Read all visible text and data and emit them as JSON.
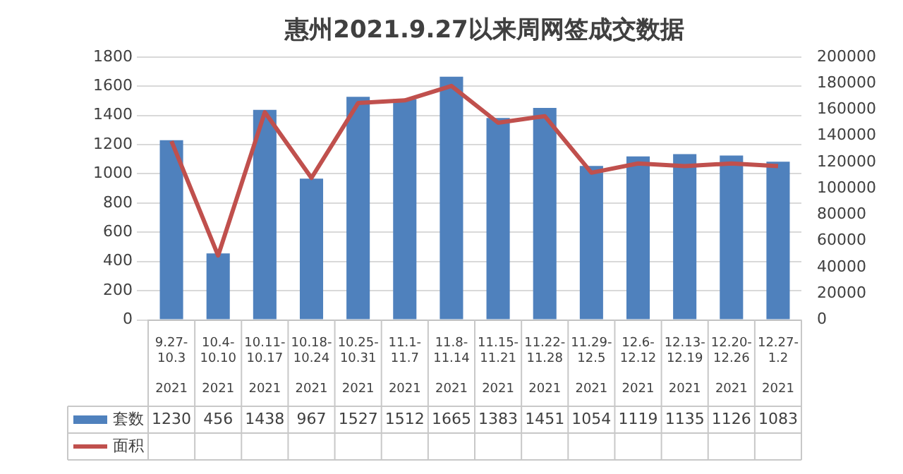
{
  "chart_data": {
    "type": "bar",
    "title": "惠州2021.9.27以来周网签成交数据",
    "categories": [
      "9.27-10.3 2021",
      "10.4-10.10 2021",
      "10.11-10.17 2021",
      "10.18-10.24 2021",
      "10.25-10.31 2021",
      "11.1-11.7 2021",
      "11.8-11.14 2021",
      "11.15-11.21 2021",
      "11.22-11.28 2021",
      "11.29-12.5 2021",
      "12.6-12.12 2021",
      "12.13-12.19 2021",
      "12.20-12.26 2021",
      "12.27-1.2 2021"
    ],
    "series": [
      {
        "name": "套数",
        "color": "#4f81bd",
        "values": [
          1230,
          456,
          1438,
          967,
          1527,
          1512,
          1665,
          1383,
          1451,
          1054,
          1119,
          1135,
          1126,
          1083
        ],
        "value_labels": [
          "1230",
          "456",
          "1438",
          "967",
          "1527",
          "1512",
          "1665",
          "1383",
          "1451",
          "1054",
          "1119",
          "1135",
          "1126",
          "1083"
        ]
      },
      {
        "name": "面积",
        "type": "line",
        "axis": "y2",
        "color": "#c0504d",
        "values": [
          136000,
          49000,
          158000,
          108000,
          165000,
          167000,
          178000,
          150000,
          155000,
          112000,
          119000,
          117000,
          119000,
          117000
        ]
      }
    ],
    "ylim": [
      0,
      1800
    ],
    "yticks": [
      0,
      200,
      400,
      600,
      800,
      1000,
      1200,
      1400,
      1600,
      1800
    ],
    "y2lim": [
      0,
      200000
    ],
    "y2ticks": [
      0,
      20000,
      40000,
      60000,
      80000,
      100000,
      120000,
      140000,
      160000,
      180000,
      200000
    ],
    "grid": "y",
    "legend": "bottom"
  }
}
